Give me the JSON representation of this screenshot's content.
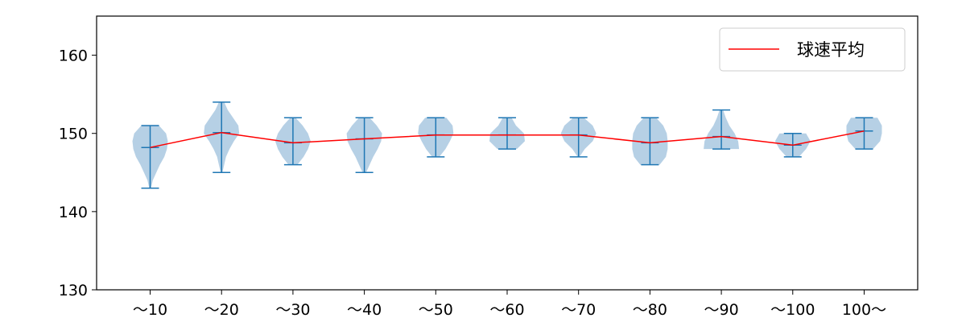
{
  "chart_data": {
    "type": "violin",
    "categories": [
      "～10",
      "～20",
      "～30",
      "～40",
      "～50",
      "～60",
      "～70",
      "～80",
      "～90",
      "～100",
      "100～"
    ],
    "ylim": [
      130,
      165
    ],
    "yticks": [
      130,
      140,
      150,
      160
    ],
    "grid": false,
    "legend_position": "top-right",
    "violins": [
      {
        "min": 143,
        "max": 151,
        "mean": 148.2,
        "density": [
          [
            143,
            0.05
          ],
          [
            144,
            0.15
          ],
          [
            145,
            0.35
          ],
          [
            146,
            0.55
          ],
          [
            147,
            0.8
          ],
          [
            148,
            0.95
          ],
          [
            149,
            1.0
          ],
          [
            150,
            0.9
          ],
          [
            151,
            0.5
          ]
        ]
      },
      {
        "min": 145,
        "max": 154,
        "mean": 150.1,
        "density": [
          [
            145,
            0.05
          ],
          [
            146,
            0.15
          ],
          [
            147,
            0.25
          ],
          [
            148,
            0.45
          ],
          [
            149,
            0.7
          ],
          [
            150,
            1.0
          ],
          [
            151,
            0.95
          ],
          [
            152,
            0.65
          ],
          [
            153,
            0.35
          ],
          [
            154,
            0.15
          ]
        ]
      },
      {
        "min": 146,
        "max": 152,
        "mean": 148.8,
        "density": [
          [
            146,
            0.25
          ],
          [
            147,
            0.6
          ],
          [
            148,
            0.85
          ],
          [
            149,
            1.0
          ],
          [
            150,
            0.85
          ],
          [
            151,
            0.55
          ],
          [
            152,
            0.15
          ]
        ]
      },
      {
        "min": 145,
        "max": 152,
        "mean": 149.3,
        "density": [
          [
            145,
            0.1
          ],
          [
            146,
            0.3
          ],
          [
            147,
            0.5
          ],
          [
            148,
            0.75
          ],
          [
            149,
            0.95
          ],
          [
            150,
            1.0
          ],
          [
            151,
            0.7
          ],
          [
            152,
            0.3
          ]
        ]
      },
      {
        "min": 147,
        "max": 152,
        "mean": 149.8,
        "density": [
          [
            147,
            0.2
          ],
          [
            148,
            0.55
          ],
          [
            149,
            0.8
          ],
          [
            150,
            1.0
          ],
          [
            151,
            0.95
          ],
          [
            152,
            0.6
          ]
        ]
      },
      {
        "min": 148,
        "max": 152,
        "mean": 149.8,
        "density": [
          [
            148,
            0.55
          ],
          [
            149,
            1.0
          ],
          [
            150,
            0.95
          ],
          [
            151,
            0.5
          ],
          [
            152,
            0.25
          ]
        ]
      },
      {
        "min": 147,
        "max": 152,
        "mean": 149.8,
        "density": [
          [
            147,
            0.05
          ],
          [
            148,
            0.35
          ],
          [
            149,
            0.8
          ],
          [
            150,
            1.0
          ],
          [
            151,
            0.8
          ],
          [
            152,
            0.3
          ]
        ]
      },
      {
        "min": 146,
        "max": 152,
        "mean": 148.8,
        "density": [
          [
            146,
            0.55
          ],
          [
            147,
            0.9
          ],
          [
            148,
            1.0
          ],
          [
            149,
            1.0
          ],
          [
            150,
            0.95
          ],
          [
            151,
            0.75
          ],
          [
            152,
            0.35
          ]
        ]
      },
      {
        "min": 148,
        "max": 153,
        "mean": 149.6,
        "density": [
          [
            148,
            1.0
          ],
          [
            149,
            0.95
          ],
          [
            150,
            0.75
          ],
          [
            151,
            0.45
          ],
          [
            152,
            0.25
          ],
          [
            153,
            0.1
          ]
        ]
      },
      {
        "min": 147,
        "max": 150,
        "mean": 148.5,
        "density": [
          [
            147,
            0.35
          ],
          [
            148,
            0.75
          ],
          [
            149,
            1.0
          ],
          [
            150,
            0.75
          ]
        ]
      },
      {
        "min": 148,
        "max": 152,
        "mean": 150.3,
        "density": [
          [
            148,
            0.5
          ],
          [
            149,
            0.9
          ],
          [
            150,
            1.0
          ],
          [
            151,
            1.0
          ],
          [
            152,
            0.75
          ]
        ]
      }
    ],
    "series": [
      {
        "name": "球速平均",
        "values": [
          148.2,
          150.1,
          148.8,
          149.3,
          149.8,
          149.8,
          149.8,
          148.8,
          149.6,
          148.5,
          150.3
        ]
      }
    ],
    "colors": {
      "violin_fill": "#a9c8e1",
      "violin_stroke": "#1f77b4",
      "line": "#ff0000"
    }
  }
}
